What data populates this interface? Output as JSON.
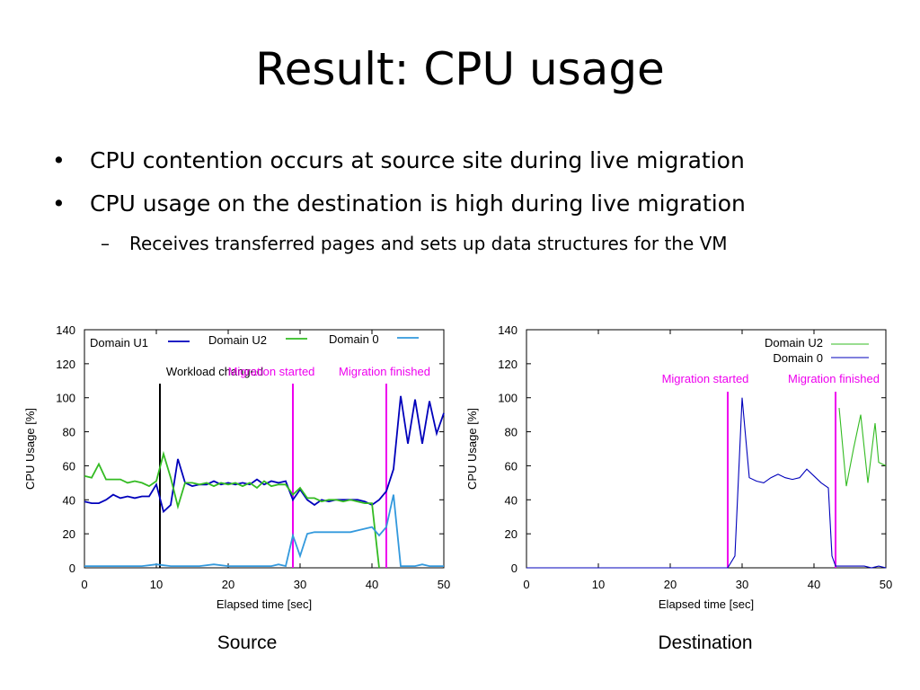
{
  "slide": {
    "title": "Result: CPU usage",
    "bullets": [
      "CPU contention occurs at source site during live migration",
      "CPU usage on the destination is high during live migration"
    ],
    "sub_bullets": [
      "Receives transferred pages and sets up data structures for the VM"
    ],
    "bullet_glyph": "•",
    "sub_bullet_glyph": "–"
  },
  "colors": {
    "domain_u1": "#0000bb",
    "domain_u2": "#33bb22",
    "domain_0": "#3399dd",
    "migration_marker": "#ee00ee",
    "workload_marker": "#000000"
  },
  "chart_data": [
    {
      "type": "line",
      "caption": "Source",
      "xlabel": "Elapsed time [sec]",
      "ylabel": "CPU Usage [%]",
      "xlim": [
        0,
        50
      ],
      "ylim": [
        0,
        140
      ],
      "xticks": [
        0,
        10,
        20,
        30,
        40,
        50
      ],
      "yticks": [
        0,
        20,
        40,
        60,
        80,
        100,
        120,
        140
      ],
      "legend_placement": "top-left",
      "series": [
        {
          "name": "Domain U1",
          "color_key": "domain_u1",
          "x": [
            0,
            1,
            2,
            3,
            4,
            5,
            6,
            7,
            8,
            9,
            10,
            11,
            12,
            13,
            14,
            15,
            16,
            17,
            18,
            19,
            20,
            21,
            22,
            23,
            24,
            25,
            26,
            27,
            28,
            29,
            30,
            31,
            32,
            33,
            34,
            35,
            36,
            37,
            38,
            39,
            40,
            41,
            42,
            43,
            44,
            45,
            46,
            47,
            48,
            49,
            50
          ],
          "y": [
            39,
            38,
            38,
            40,
            43,
            41,
            42,
            41,
            42,
            42,
            49,
            33,
            37,
            64,
            50,
            48,
            49,
            49,
            51,
            49,
            50,
            49,
            50,
            49,
            52,
            49,
            51,
            50,
            51,
            40,
            46,
            40,
            37,
            40,
            39,
            40,
            40,
            40,
            40,
            39,
            37,
            40,
            45,
            58,
            101,
            73,
            99,
            73,
            98,
            79,
            91
          ]
        },
        {
          "name": "Domain U2",
          "color_key": "domain_u2",
          "x": [
            0,
            1,
            2,
            3,
            4,
            5,
            6,
            7,
            8,
            9,
            10,
            11,
            12,
            13,
            14,
            15,
            16,
            17,
            18,
            19,
            20,
            21,
            22,
            23,
            24,
            25,
            26,
            27,
            28,
            29,
            30,
            31,
            32,
            33,
            34,
            35,
            36,
            37,
            38,
            39,
            40,
            41
          ],
          "y": [
            54,
            53,
            61,
            52,
            52,
            52,
            50,
            51,
            50,
            48,
            51,
            67,
            53,
            36,
            50,
            50,
            49,
            50,
            48,
            50,
            49,
            50,
            48,
            50,
            47,
            51,
            48,
            49,
            49,
            43,
            47,
            41,
            41,
            39,
            40,
            40,
            39,
            40,
            39,
            38,
            38,
            0
          ]
        },
        {
          "name": "Domain 0",
          "color_key": "domain_0",
          "x": [
            0,
            2,
            4,
            6,
            8,
            10,
            12,
            14,
            16,
            18,
            20,
            22,
            24,
            26,
            27,
            28,
            29,
            30,
            31,
            32,
            33,
            34,
            35,
            36,
            37,
            38,
            39,
            40,
            41,
            42,
            43,
            44,
            45,
            46,
            47,
            48,
            49,
            50
          ],
          "y": [
            1,
            1,
            1,
            1,
            1,
            2,
            1,
            1,
            1,
            2,
            1,
            1,
            1,
            1,
            2,
            1,
            19,
            7,
            20,
            21,
            21,
            21,
            21,
            21,
            21,
            22,
            23,
            24,
            19,
            24,
            43,
            1,
            1,
            1,
            2,
            1,
            1,
            1
          ]
        }
      ],
      "markers": [
        {
          "label": "Workload changed",
          "x": 10.5,
          "color_key": "workload_marker"
        },
        {
          "label": "Migration started",
          "x": 29,
          "color_key": "migration_marker"
        },
        {
          "label": "Migration finished",
          "x": 42,
          "color_key": "migration_marker"
        }
      ]
    },
    {
      "type": "line",
      "caption": "Destination",
      "xlabel": "Elapsed time [sec]",
      "ylabel": "CPU Usage [%]",
      "xlim": [
        0,
        50
      ],
      "ylim": [
        0,
        140
      ],
      "xticks": [
        0,
        10,
        20,
        30,
        40,
        50
      ],
      "yticks": [
        0,
        20,
        40,
        60,
        80,
        100,
        120,
        140
      ],
      "legend_placement": "top-right",
      "series": [
        {
          "name": "Domain U2",
          "color_key": "domain_u2",
          "x": [
            43.5,
            44.5,
            45.5,
            46.5,
            47.5,
            48.5,
            49,
            50
          ],
          "y": [
            94,
            48,
            70,
            90,
            50,
            85,
            62,
            60
          ]
        },
        {
          "name": "Domain 0",
          "color_key": "domain_0_dest",
          "x": [
            0,
            5,
            10,
            15,
            20,
            25,
            28,
            29,
            30,
            31,
            32,
            33,
            34,
            35,
            36,
            37,
            38,
            39,
            40,
            41,
            42,
            42.5,
            43,
            44,
            45,
            46,
            47,
            48,
            49,
            50
          ],
          "y": [
            0,
            0,
            0,
            0,
            0,
            0,
            0,
            7,
            100,
            53,
            51,
            50,
            53,
            55,
            53,
            52,
            53,
            58,
            54,
            50,
            47,
            7,
            1,
            1,
            1,
            1,
            1,
            0,
            1,
            0
          ]
        }
      ],
      "markers": [
        {
          "label": "Migration started",
          "x": 28,
          "color_key": "migration_marker"
        },
        {
          "label": "Migration finished",
          "x": 43,
          "color_key": "migration_marker"
        }
      ]
    }
  ]
}
